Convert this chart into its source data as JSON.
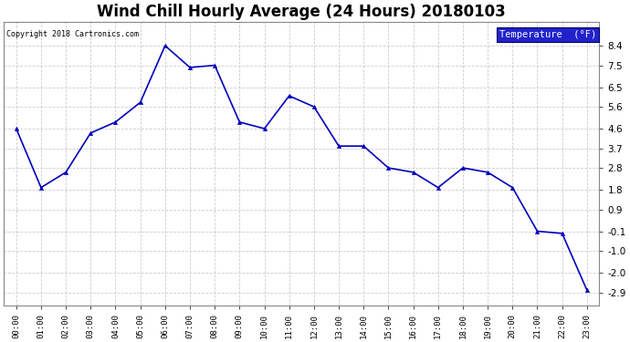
{
  "title": "Wind Chill Hourly Average (24 Hours) 20180103",
  "copyright_text": "Copyright 2018 Cartronics.com",
  "legend_label": "Temperature  (°F)",
  "hours": [
    "00:00",
    "01:00",
    "02:00",
    "03:00",
    "04:00",
    "05:00",
    "06:00",
    "07:00",
    "08:00",
    "09:00",
    "10:00",
    "11:00",
    "12:00",
    "13:00",
    "14:00",
    "15:00",
    "16:00",
    "17:00",
    "18:00",
    "19:00",
    "20:00",
    "21:00",
    "22:00",
    "23:00"
  ],
  "values": [
    4.6,
    1.9,
    2.6,
    4.4,
    4.9,
    5.8,
    8.4,
    7.4,
    7.5,
    4.9,
    4.6,
    6.1,
    5.6,
    3.8,
    3.8,
    2.8,
    2.6,
    1.9,
    2.8,
    2.6,
    1.9,
    -0.1,
    -0.2,
    -2.8
  ],
  "ylim_min": -3.5,
  "ylim_max": 9.5,
  "yticks": [
    8.4,
    7.5,
    6.5,
    5.6,
    4.6,
    3.7,
    2.8,
    1.8,
    0.9,
    -0.1,
    -1.0,
    -2.0,
    -2.9
  ],
  "line_color": "#0000bb",
  "marker_color": "#0000bb",
  "fig_bg_color": "#ffffff",
  "plot_bg_color": "#ffffff",
  "grid_color": "#cccccc",
  "title_fontsize": 12,
  "legend_bg": "#2222cc",
  "legend_text_color": "#ffffff",
  "copyright_color": "#000000"
}
